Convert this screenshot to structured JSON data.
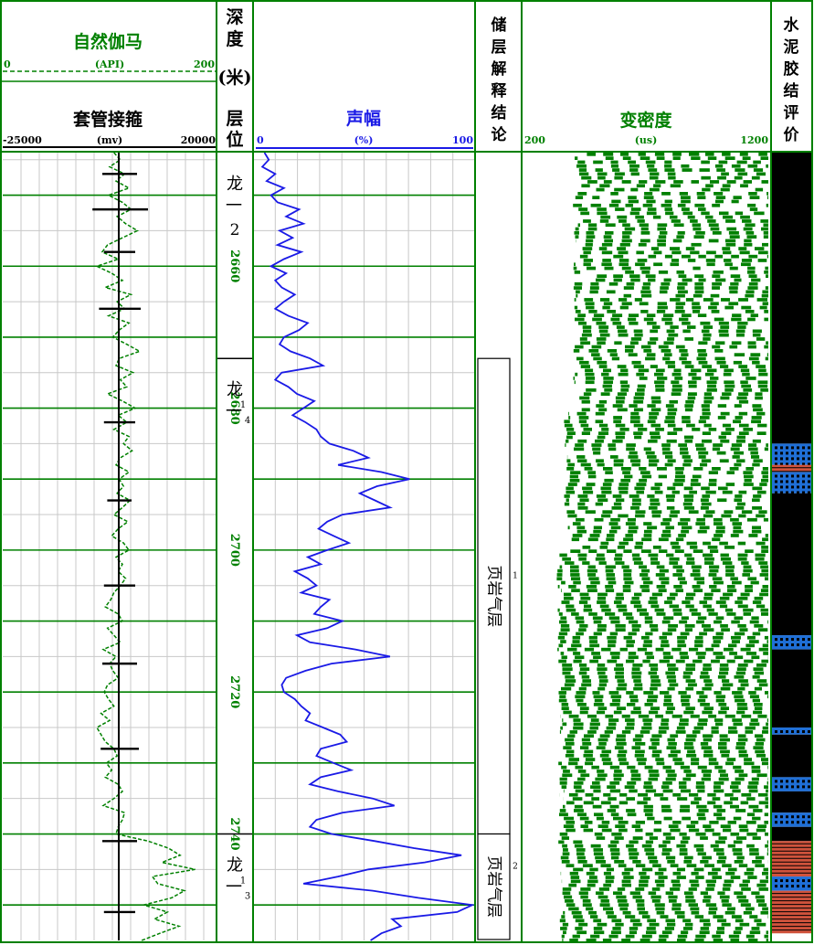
{
  "headers": {
    "gr": {
      "title": "自然伽马",
      "min": "0",
      "unit": "(API)",
      "max": "200"
    },
    "ccl": {
      "title": "套管接箍",
      "min": "-25000",
      "unit": "(mv)",
      "max": "20000"
    },
    "depth": {
      "title_chars": [
        "深",
        "度"
      ],
      "unit": "(米)"
    },
    "layer": {
      "title_chars": [
        "层",
        "位"
      ]
    },
    "amp": {
      "title": "声幅",
      "min": "0",
      "unit": "(%)",
      "max": "100"
    },
    "res": {
      "title_chars": [
        "储",
        "层",
        "解",
        "释",
        "结",
        "论"
      ]
    },
    "vdl": {
      "title": "变密度",
      "min": "200",
      "unit": "(us)",
      "max": "1200"
    },
    "cem": {
      "title_chars": [
        "水",
        "泥",
        "胶",
        "结",
        "评",
        "价"
      ]
    }
  },
  "colors": {
    "green": "#008000",
    "blue": "#1a1ae6",
    "black": "#000000",
    "grid": "#c8c8c8",
    "cement_good": "#000000",
    "cement_medium": "#1f6fd6",
    "cement_poor": "#d0533c"
  },
  "chart_data": {
    "type": "well-log",
    "depth_range": [
      2644,
      2755
    ],
    "depth_ticks": [
      "2660",
      "2680",
      "2700",
      "2720",
      "2740"
    ],
    "layers": [
      {
        "from": 2644,
        "to": 2673,
        "chars": [
          "龙",
          "一",
          "2"
        ]
      },
      {
        "from": 2673,
        "to": 2740,
        "chars": [
          "龙",
          "一",
          "1",
          "4"
        ]
      },
      {
        "from": 2740,
        "to": 2755,
        "chars": [
          "龙",
          "一",
          "1",
          "3"
        ]
      }
    ],
    "interpretation": [
      {
        "from": 2673,
        "to": 2740,
        "label": "页岩气层",
        "number": "1"
      },
      {
        "from": 2740,
        "to": 2755,
        "label": "页岩气层",
        "number": "2"
      }
    ],
    "amplitude_curve": {
      "name": "声幅",
      "unit": "%",
      "range": [
        0,
        100
      ],
      "depth": [
        2644,
        2645,
        2646,
        2647,
        2648,
        2649,
        2650,
        2651,
        2652,
        2653,
        2654,
        2655,
        2656,
        2657,
        2658,
        2659,
        2660,
        2661,
        2662,
        2663,
        2664,
        2665,
        2666,
        2667,
        2668,
        2669,
        2670,
        2671,
        2672,
        2673,
        2674,
        2675,
        2676,
        2677,
        2678,
        2679,
        2680,
        2681,
        2682,
        2683,
        2684,
        2685,
        2686,
        2687,
        2688,
        2689,
        2690,
        2691,
        2692,
        2693,
        2694,
        2695,
        2696,
        2697,
        2698,
        2699,
        2700,
        2701,
        2702,
        2703,
        2704,
        2705,
        2706,
        2707,
        2708,
        2709,
        2710,
        2711,
        2712,
        2713,
        2714,
        2715,
        2716,
        2717,
        2718,
        2719,
        2720,
        2721,
        2722,
        2723,
        2724,
        2725,
        2726,
        2727,
        2728,
        2729,
        2730,
        2731,
        2732,
        2733,
        2734,
        2735,
        2736,
        2737,
        2738,
        2739,
        2740,
        2741,
        2742,
        2743,
        2744,
        2745,
        2746,
        2747,
        2748,
        2749,
        2750,
        2751,
        2752,
        2753,
        2754,
        2755
      ],
      "value": [
        4,
        6,
        3,
        9,
        5,
        13,
        7,
        10,
        20,
        14,
        22,
        11,
        17,
        10,
        21,
        13,
        7,
        14,
        9,
        12,
        18,
        13,
        9,
        15,
        24,
        20,
        13,
        11,
        16,
        25,
        31,
        12,
        9,
        15,
        19,
        27,
        22,
        17,
        23,
        28,
        30,
        34,
        45,
        52,
        38,
        58,
        71,
        56,
        48,
        55,
        62,
        40,
        33,
        29,
        36,
        43,
        33,
        24,
        30,
        18,
        24,
        28,
        21,
        34,
        30,
        27,
        40,
        33,
        19,
        25,
        46,
        62,
        35,
        23,
        14,
        12,
        13,
        18,
        21,
        25,
        23,
        31,
        39,
        42,
        30,
        28,
        36,
        44,
        30,
        25,
        38,
        54,
        64,
        40,
        28,
        25,
        35,
        55,
        73,
        95,
        78,
        52,
        38,
        22,
        54,
        75,
        100,
        93,
        63,
        67,
        58,
        53
      ]
    },
    "gr_curve": {
      "name": "自然伽马",
      "unit": "API",
      "range": [
        0,
        200
      ],
      "depth": [
        2644,
        2645,
        2646,
        2647,
        2648,
        2649,
        2650,
        2651,
        2652,
        2653,
        2654,
        2655,
        2656,
        2657,
        2658,
        2659,
        2660,
        2661,
        2662,
        2663,
        2664,
        2665,
        2666,
        2667,
        2668,
        2669,
        2670,
        2671,
        2672,
        2673,
        2674,
        2675,
        2676,
        2677,
        2678,
        2679,
        2680,
        2681,
        2682,
        2683,
        2684,
        2685,
        2686,
        2687,
        2688,
        2689,
        2690,
        2691,
        2692,
        2693,
        2694,
        2695,
        2696,
        2697,
        2698,
        2699,
        2700,
        2701,
        2702,
        2703,
        2704,
        2705,
        2706,
        2707,
        2708,
        2709,
        2710,
        2711,
        2712,
        2713,
        2714,
        2715,
        2716,
        2717,
        2718,
        2719,
        2720,
        2721,
        2722,
        2723,
        2724,
        2725,
        2726,
        2727,
        2728,
        2729,
        2730,
        2731,
        2732,
        2733,
        2734,
        2735,
        2736,
        2737,
        2738,
        2739,
        2740,
        2741,
        2742,
        2743,
        2744,
        2745,
        2746,
        2747,
        2748,
        2749,
        2750,
        2751,
        2752,
        2753,
        2754,
        2755
      ],
      "value": [
        104,
        110,
        100,
        114,
        106,
        118,
        99,
        112,
        120,
        107,
        115,
        126,
        112,
        98,
        93,
        108,
        88,
        102,
        112,
        96,
        120,
        107,
        114,
        99,
        118,
        109,
        103,
        116,
        128,
        109,
        106,
        122,
        110,
        116,
        98,
        112,
        124,
        108,
        116,
        104,
        118,
        113,
        121,
        110,
        106,
        118,
        109,
        113,
        107,
        119,
        112,
        104,
        117,
        108,
        102,
        113,
        118,
        106,
        112,
        108,
        115,
        110,
        104,
        101,
        96,
        108,
        112,
        98,
        104,
        110,
        94,
        106,
        100,
        103,
        108,
        98,
        95,
        99,
        104,
        92,
        100,
        88,
        92,
        96,
        104,
        107,
        97,
        102,
        96,
        108,
        112,
        104,
        94,
        114,
        112,
        108,
        106,
        136,
        155,
        166,
        149,
        180,
        140,
        145,
        170,
        158,
        132,
        154,
        142,
        165,
        147,
        130
      ]
    },
    "ccl_collars": [
      2647,
      2652,
      2658,
      2666,
      2682,
      2693,
      2705,
      2716,
      2728,
      2741,
      2751
    ],
    "vdl_track": {
      "name": "变密度",
      "unit": "us",
      "range": [
        200,
        1200
      ],
      "fringe_spacing": 70
    },
    "cement_bond": [
      {
        "from": 2644,
        "to": 2685,
        "grade": "good"
      },
      {
        "from": 2685,
        "to": 2688,
        "grade": "medium"
      },
      {
        "from": 2688,
        "to": 2689,
        "grade": "poor"
      },
      {
        "from": 2689,
        "to": 2692,
        "grade": "medium"
      },
      {
        "from": 2692,
        "to": 2712,
        "grade": "good"
      },
      {
        "from": 2712,
        "to": 2714,
        "grade": "medium"
      },
      {
        "from": 2714,
        "to": 2725,
        "grade": "good"
      },
      {
        "from": 2725,
        "to": 2726,
        "grade": "medium"
      },
      {
        "from": 2726,
        "to": 2732,
        "grade": "good"
      },
      {
        "from": 2732,
        "to": 2734,
        "grade": "medium"
      },
      {
        "from": 2734,
        "to": 2737,
        "grade": "good"
      },
      {
        "from": 2737,
        "to": 2739,
        "grade": "medium"
      },
      {
        "from": 2739,
        "to": 2741,
        "grade": "good"
      },
      {
        "from": 2741,
        "to": 2746,
        "grade": "poor"
      },
      {
        "from": 2746,
        "to": 2748,
        "grade": "medium"
      },
      {
        "from": 2748,
        "to": 2754,
        "grade": "poor"
      }
    ]
  }
}
